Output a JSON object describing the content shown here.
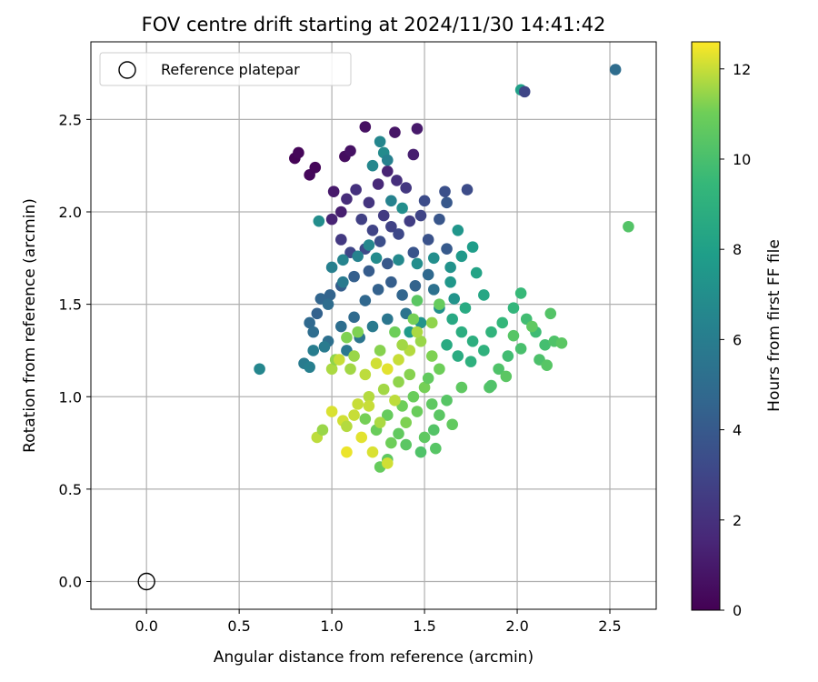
{
  "chart_data": {
    "type": "scatter",
    "title": "FOV centre drift starting at 2024/11/30 14:41:42",
    "xlabel": "Angular distance from reference (arcmin)",
    "ylabel": "Rotation from reference (arcmin)",
    "xlim": [
      -0.3,
      2.75
    ],
    "ylim": [
      -0.15,
      2.92
    ],
    "xticks": [
      "0.0",
      "0.5",
      "1.0",
      "1.5",
      "2.0",
      "2.5"
    ],
    "yticks": [
      "0.0",
      "0.5",
      "1.0",
      "1.5",
      "2.0",
      "2.5"
    ],
    "grid": true,
    "legend": {
      "position": "upper-left",
      "entries": [
        "Reference platepar"
      ]
    },
    "colorbar": {
      "label": "Hours from first FF file",
      "colormap": "viridis",
      "range": [
        0,
        12.6
      ],
      "ticks": [
        "0",
        "2",
        "4",
        "6",
        "8",
        "10",
        "12"
      ]
    },
    "reference_point": {
      "x": 0.0,
      "y": 0.0
    },
    "points": [
      [
        0.8,
        2.29,
        0.1
      ],
      [
        0.82,
        2.32,
        0.2
      ],
      [
        0.88,
        2.2,
        0.3
      ],
      [
        0.91,
        2.24,
        0.2
      ],
      [
        1.07,
        2.3,
        0.5
      ],
      [
        1.1,
        2.33,
        0.7
      ],
      [
        1.18,
        2.46,
        0.6
      ],
      [
        1.34,
        2.43,
        0.8
      ],
      [
        1.46,
        2.45,
        1.0
      ],
      [
        1.44,
        2.31,
        1.2
      ],
      [
        1.01,
        2.11,
        1.0
      ],
      [
        1.05,
        2.0,
        1.2
      ],
      [
        1.0,
        1.96,
        1.4
      ],
      [
        1.08,
        2.07,
        1.8
      ],
      [
        1.13,
        2.12,
        2.0
      ],
      [
        1.2,
        2.05,
        2.2
      ],
      [
        1.25,
        2.15,
        1.6
      ],
      [
        1.3,
        2.22,
        1.4
      ],
      [
        1.35,
        2.17,
        1.9
      ],
      [
        1.4,
        2.13,
        2.3
      ],
      [
        1.28,
        1.98,
        2.5
      ],
      [
        1.32,
        1.92,
        2.8
      ],
      [
        1.22,
        1.9,
        2.9
      ],
      [
        1.16,
        1.96,
        2.7
      ],
      [
        1.05,
        1.85,
        2.4
      ],
      [
        1.1,
        1.78,
        3.0
      ],
      [
        1.18,
        1.8,
        3.2
      ],
      [
        1.26,
        1.84,
        3.4
      ],
      [
        1.36,
        1.88,
        3.1
      ],
      [
        1.42,
        1.95,
        2.6
      ],
      [
        1.48,
        1.98,
        2.9
      ],
      [
        1.5,
        2.06,
        3.3
      ],
      [
        1.52,
        1.85,
        3.6
      ],
      [
        1.58,
        1.96,
        3.8
      ],
      [
        1.62,
        2.05,
        3.9
      ],
      [
        1.61,
        2.11,
        3.5
      ],
      [
        1.73,
        2.12,
        3.3
      ],
      [
        1.62,
        1.8,
        4.0
      ],
      [
        1.44,
        1.78,
        3.7
      ],
      [
        1.3,
        1.72,
        3.9
      ],
      [
        1.2,
        1.68,
        4.1
      ],
      [
        1.12,
        1.65,
        4.3
      ],
      [
        1.05,
        1.6,
        4.2
      ],
      [
        0.99,
        1.55,
        4.5
      ],
      [
        0.94,
        1.53,
        4.6
      ],
      [
        0.92,
        1.45,
        4.4
      ],
      [
        0.88,
        1.4,
        4.8
      ],
      [
        0.9,
        1.35,
        5.0
      ],
      [
        0.98,
        1.3,
        5.2
      ],
      [
        1.05,
        1.38,
        5.1
      ],
      [
        1.12,
        1.43,
        4.9
      ],
      [
        1.18,
        1.52,
        4.7
      ],
      [
        1.25,
        1.58,
        4.4
      ],
      [
        1.32,
        1.62,
        4.2
      ],
      [
        1.38,
        1.55,
        4.6
      ],
      [
        1.45,
        1.6,
        4.5
      ],
      [
        1.52,
        1.66,
        4.8
      ],
      [
        1.55,
        1.58,
        5.3
      ],
      [
        1.4,
        1.45,
        5.4
      ],
      [
        1.3,
        1.42,
        5.6
      ],
      [
        1.22,
        1.38,
        5.8
      ],
      [
        1.15,
        1.32,
        5.5
      ],
      [
        1.08,
        1.25,
        5.7
      ],
      [
        0.96,
        1.27,
        5.9
      ],
      [
        0.9,
        1.25,
        6.0
      ],
      [
        0.85,
        1.18,
        5.9
      ],
      [
        0.88,
        1.16,
        6.1
      ],
      [
        0.61,
        1.15,
        6.5
      ],
      [
        1.0,
        1.7,
        6.2
      ],
      [
        1.06,
        1.74,
        6.4
      ],
      [
        1.14,
        1.76,
        6.3
      ],
      [
        1.2,
        1.82,
        6.6
      ],
      [
        1.24,
        1.75,
        6.8
      ],
      [
        1.36,
        1.74,
        6.7
      ],
      [
        1.46,
        1.72,
        6.9
      ],
      [
        1.55,
        1.75,
        7.0
      ],
      [
        1.64,
        1.7,
        7.2
      ],
      [
        1.7,
        1.76,
        7.6
      ],
      [
        1.76,
        1.81,
        7.8
      ],
      [
        1.68,
        1.9,
        7.4
      ],
      [
        1.22,
        2.25,
        6.6
      ],
      [
        1.28,
        2.32,
        6.8
      ],
      [
        1.3,
        2.28,
        6.2
      ],
      [
        1.32,
        2.06,
        6.3
      ],
      [
        1.38,
        2.02,
        7.0
      ],
      [
        0.93,
        1.95,
        6.9
      ],
      [
        1.64,
        1.62,
        7.5
      ],
      [
        1.66,
        1.53,
        7.3
      ],
      [
        1.58,
        1.48,
        7.1
      ],
      [
        1.48,
        1.4,
        7.3
      ],
      [
        1.42,
        1.35,
        7.7
      ],
      [
        1.78,
        1.67,
        8.2
      ],
      [
        1.82,
        1.55,
        8.4
      ],
      [
        1.72,
        1.48,
        8.6
      ],
      [
        1.65,
        1.42,
        8.5
      ],
      [
        1.7,
        1.35,
        8.8
      ],
      [
        1.76,
        1.3,
        8.9
      ],
      [
        1.82,
        1.25,
        9.1
      ],
      [
        1.75,
        1.19,
        9.0
      ],
      [
        1.68,
        1.22,
        8.7
      ],
      [
        1.62,
        1.28,
        8.6
      ],
      [
        1.86,
        1.35,
        9.2
      ],
      [
        1.92,
        1.4,
        9.4
      ],
      [
        1.98,
        1.48,
        9.3
      ],
      [
        2.02,
        1.56,
        9.5
      ],
      [
        2.05,
        1.42,
        9.8
      ],
      [
        2.1,
        1.35,
        9.7
      ],
      [
        2.15,
        1.28,
        9.9
      ],
      [
        2.12,
        1.2,
        10.1
      ],
      [
        2.02,
        1.26,
        10.0
      ],
      [
        1.95,
        1.22,
        9.8
      ],
      [
        1.9,
        1.15,
        10.2
      ],
      [
        1.85,
        1.05,
        10.3
      ],
      [
        1.98,
        1.33,
        10.4
      ],
      [
        2.2,
        1.3,
        10.2
      ],
      [
        2.24,
        1.29,
        10.5
      ],
      [
        2.18,
        1.45,
        10.3
      ],
      [
        2.08,
        1.38,
        10.6
      ],
      [
        2.16,
        1.17,
        10.4
      ],
      [
        2.6,
        1.92,
        10.3
      ],
      [
        1.94,
        1.11,
        10.5
      ],
      [
        1.86,
        1.06,
        10.2
      ],
      [
        1.7,
        1.05,
        10.6
      ],
      [
        1.62,
        0.98,
        10.4
      ],
      [
        1.58,
        0.9,
        10.5
      ],
      [
        1.65,
        0.85,
        10.7
      ],
      [
        1.55,
        0.82,
        10.3
      ],
      [
        1.5,
        0.78,
        10.6
      ],
      [
        1.56,
        0.72,
        10.4
      ],
      [
        1.48,
        0.7,
        10.2
      ],
      [
        1.4,
        0.74,
        10.5
      ],
      [
        1.36,
        0.8,
        10.7
      ],
      [
        1.3,
        0.66,
        10.6
      ],
      [
        1.26,
        0.62,
        10.8
      ],
      [
        1.32,
        0.75,
        11.0
      ],
      [
        1.24,
        0.82,
        10.9
      ],
      [
        1.18,
        0.88,
        11.1
      ],
      [
        1.3,
        0.9,
        10.8
      ],
      [
        1.38,
        0.95,
        11.0
      ],
      [
        1.44,
        1.0,
        10.9
      ],
      [
        1.5,
        1.05,
        11.1
      ],
      [
        1.42,
        1.12,
        11.3
      ],
      [
        1.36,
        1.08,
        11.4
      ],
      [
        1.28,
        1.04,
        11.6
      ],
      [
        1.2,
        1.0,
        11.8
      ],
      [
        1.14,
        0.96,
        12.0
      ],
      [
        1.06,
        0.87,
        12.1
      ],
      [
        1.08,
        0.84,
        11.8
      ],
      [
        1.0,
        0.92,
        12.2
      ],
      [
        1.12,
        0.9,
        12.0
      ],
      [
        1.16,
        0.78,
        12.3
      ],
      [
        1.08,
        0.7,
        12.4
      ],
      [
        1.22,
        0.7,
        12.2
      ],
      [
        1.3,
        0.64,
        12.1
      ],
      [
        0.92,
        0.78,
        11.9
      ],
      [
        0.95,
        0.82,
        11.5
      ],
      [
        1.0,
        1.15,
        11.7
      ],
      [
        1.02,
        1.2,
        11.4
      ],
      [
        1.1,
        1.15,
        11.6
      ],
      [
        1.18,
        1.12,
        11.9
      ],
      [
        1.24,
        1.18,
        12.1
      ],
      [
        1.3,
        1.15,
        12.3
      ],
      [
        1.36,
        1.2,
        12.0
      ],
      [
        1.42,
        1.25,
        11.8
      ],
      [
        1.48,
        1.3,
        11.5
      ],
      [
        1.54,
        1.22,
        11.2
      ],
      [
        1.58,
        1.15,
        11.0
      ],
      [
        1.52,
        1.1,
        10.7
      ],
      [
        1.46,
        1.35,
        11.7
      ],
      [
        1.54,
        1.4,
        11.4
      ],
      [
        1.58,
        1.5,
        10.8
      ],
      [
        1.46,
        1.52,
        10.5
      ],
      [
        1.08,
        1.32,
        11.2
      ],
      [
        1.12,
        1.22,
        11.5
      ],
      [
        1.26,
        1.25,
        11.3
      ],
      [
        1.38,
        1.28,
        11.6
      ],
      [
        1.44,
        1.42,
        11.1
      ],
      [
        1.2,
        0.95,
        12.0
      ],
      [
        1.34,
        0.98,
        11.9
      ],
      [
        1.26,
        0.86,
        11.7
      ],
      [
        1.4,
        0.86,
        11.2
      ],
      [
        1.46,
        0.92,
        10.9
      ],
      [
        1.54,
        0.96,
        10.6
      ],
      [
        1.34,
        1.35,
        11.0
      ],
      [
        1.14,
        1.35,
        11.2
      ],
      [
        1.04,
        1.2,
        12.0
      ],
      [
        2.02,
        2.66,
        8.0
      ],
      [
        2.04,
        2.65,
        3.0
      ],
      [
        2.53,
        2.77,
        5.0
      ],
      [
        1.26,
        2.38,
        6.5
      ],
      [
        1.06,
        1.62,
        5.8
      ],
      [
        0.98,
        1.5,
        5.0
      ]
    ]
  }
}
